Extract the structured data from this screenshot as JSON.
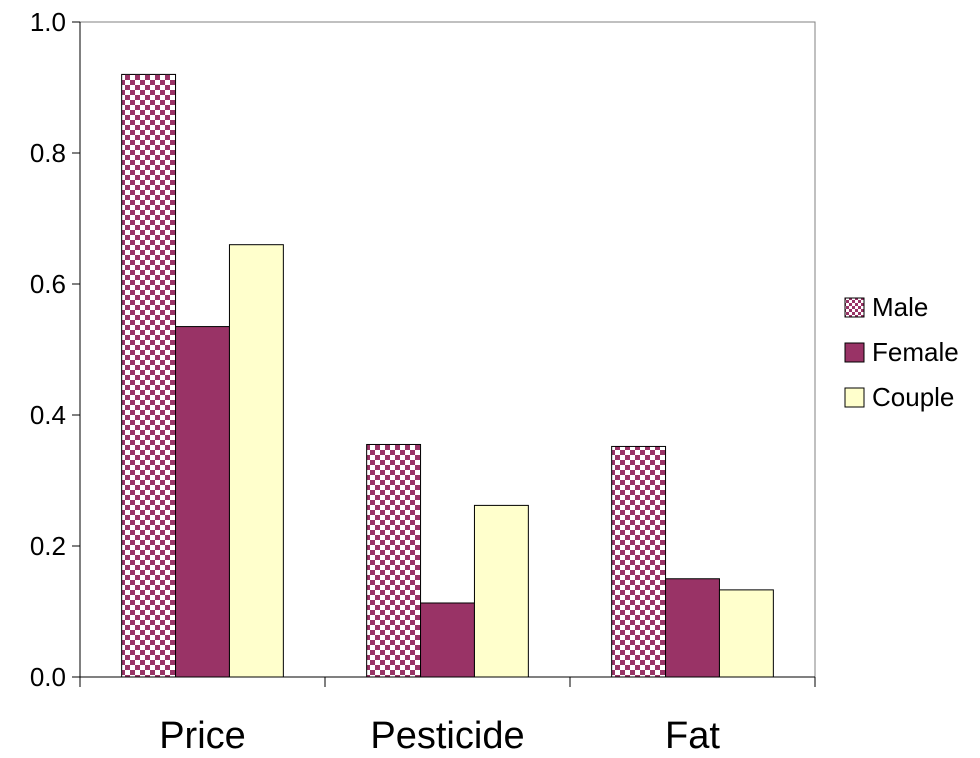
{
  "chart_data": {
    "type": "bar",
    "categories": [
      "Price",
      "Pesticide",
      "Fat"
    ],
    "series": [
      {
        "name": "Male",
        "values": [
          0.92,
          0.355,
          0.352
        ],
        "color": "#993366",
        "pattern": "checker"
      },
      {
        "name": "Female",
        "values": [
          0.535,
          0.113,
          0.15
        ],
        "color": "#993366",
        "pattern": "solid"
      },
      {
        "name": "Couple",
        "values": [
          0.66,
          0.262,
          0.133
        ],
        "color": "#ffffcc",
        "pattern": "solid"
      }
    ],
    "yticks": [
      "0.0",
      "0.2",
      "0.4",
      "0.6",
      "0.8",
      "1.0"
    ],
    "ylim": [
      0,
      1.0
    ],
    "title": "",
    "xlabel": "",
    "ylabel": "",
    "legend_position": "right",
    "grid": false
  }
}
